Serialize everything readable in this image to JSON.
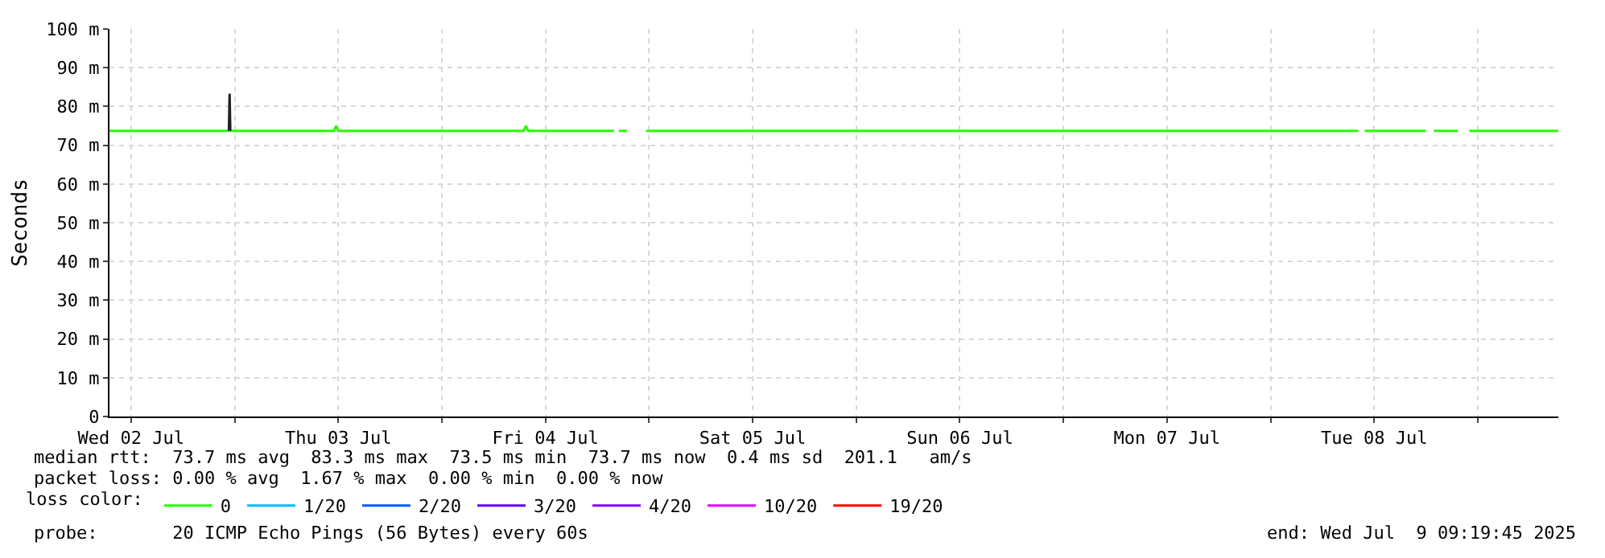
{
  "chart_data": {
    "type": "line",
    "ylabel": "Seconds",
    "xlim": [
      "2025-07-02T09:30",
      "2025-07-09T09:20"
    ],
    "xticks": [
      {
        "value": "2025-07-02T12:00",
        "label": "Wed 02 Jul"
      },
      {
        "value": "2025-07-03T00:00",
        "label": null
      },
      {
        "value": "2025-07-03T12:00",
        "label": "Thu 03 Jul"
      },
      {
        "value": "2025-07-04T00:00",
        "label": null
      },
      {
        "value": "2025-07-04T12:00",
        "label": "Fri 04 Jul"
      },
      {
        "value": "2025-07-05T00:00",
        "label": null
      },
      {
        "value": "2025-07-05T12:00",
        "label": "Sat 05 Jul"
      },
      {
        "value": "2025-07-06T00:00",
        "label": null
      },
      {
        "value": "2025-07-06T12:00",
        "label": "Sun 06 Jul"
      },
      {
        "value": "2025-07-07T00:00",
        "label": null
      },
      {
        "value": "2025-07-07T12:00",
        "label": "Mon 07 Jul"
      },
      {
        "value": "2025-07-08T00:00",
        "label": null
      },
      {
        "value": "2025-07-08T12:00",
        "label": "Tue 08 Jul"
      },
      {
        "value": "2025-07-09T00:00",
        "label": null
      }
    ],
    "ylim": [
      0,
      100
    ],
    "yticks": [
      0,
      {
        "value": 10,
        "label": "10 m"
      },
      {
        "value": 20,
        "label": "20 m"
      },
      {
        "value": 30,
        "label": "30 m"
      },
      {
        "value": 40,
        "label": "40 m"
      },
      {
        "value": 50,
        "label": "50 m"
      },
      {
        "value": 60,
        "label": "60 m"
      },
      {
        "value": 70,
        "label": "70 m"
      },
      {
        "value": 80,
        "label": "80 m"
      },
      {
        "value": 90,
        "label": "90 m"
      },
      {
        "value": 100,
        "label": "100 m"
      }
    ],
    "grid": true,
    "legend": "bottom",
    "legend_title": "loss color:",
    "marker": "none",
    "line_style": "solid",
    "series": [
      {
        "name": "0",
        "color": "#26ff00",
        "x": [
          "2025-07-02T09:30",
          "2025-07-03T11:30",
          "2025-07-03T11:45",
          "2025-07-03T12:00",
          "2025-07-04T09:30",
          "2025-07-04T09:43",
          "2025-07-04T10:00",
          "2025-07-04T19:57",
          null,
          "2025-07-04T20:30",
          "2025-07-04T21:27",
          null,
          "2025-07-04T23:40",
          "2025-07-08T10:10",
          null,
          "2025-07-08T10:55",
          "2025-07-08T17:59",
          null,
          "2025-07-08T18:55",
          "2025-07-08T21:43",
          null,
          "2025-07-08T23:01",
          "2025-07-09T09:20"
        ],
        "values": [
          73.7,
          73.7,
          75,
          73.7,
          73.7,
          75,
          73.7,
          73.7,
          null,
          73.7,
          73.7,
          null,
          73.7,
          73.7,
          null,
          73.7,
          73.7,
          null,
          73.7,
          73.7,
          null,
          73.7,
          73.7
        ]
      },
      {
        "color": "#202020",
        "x": [
          "2025-07-02T23:20",
          "2025-07-02T23:25",
          "2025-07-02T23:30"
        ],
        "values": [
          73.7,
          83.3,
          73.7
        ]
      },
      {
        "name": "1/20",
        "color": "#00b8ff"
      },
      {
        "name": "2/20",
        "color": "#0059ff"
      },
      {
        "name": "3/20",
        "color": "#5e00ff"
      },
      {
        "name": "4/20",
        "color": "#7e00ff"
      },
      {
        "name": "10/20",
        "color": "#dd00ff"
      },
      {
        "name": "19/20",
        "color": "#ff0000"
      }
    ],
    "annotations": [
      "median rtt:  73.7 ms avg  83.3 ms max  73.5 ms min  73.7 ms now  0.4 ms sd  201.1   am/s",
      "packet loss: 0.00 % avg  1.67 % max  0.00 % min  0.00 % now",
      "probe:       20 ICMP Echo Pings (56 Bytes) every 60s",
      "end: Wed Jul  9 09:19:45 2025"
    ]
  }
}
